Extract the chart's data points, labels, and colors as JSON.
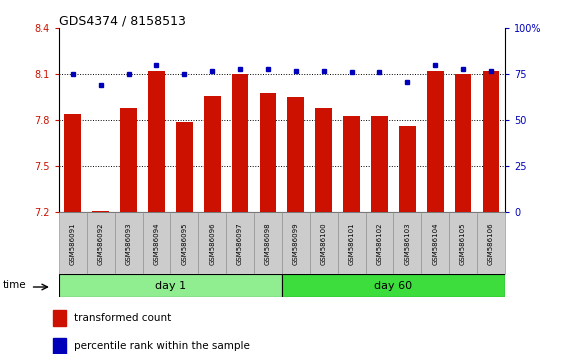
{
  "title": "GDS4374 / 8158513",
  "samples": [
    "GSM586091",
    "GSM586092",
    "GSM586093",
    "GSM586094",
    "GSM586095",
    "GSM586096",
    "GSM586097",
    "GSM586098",
    "GSM586099",
    "GSM586100",
    "GSM586101",
    "GSM586102",
    "GSM586103",
    "GSM586104",
    "GSM586105",
    "GSM586106"
  ],
  "red_values": [
    7.84,
    7.21,
    7.88,
    8.12,
    7.79,
    7.96,
    8.1,
    7.98,
    7.95,
    7.88,
    7.83,
    7.83,
    7.76,
    8.12,
    8.1,
    8.12
  ],
  "blue_values": [
    75,
    69,
    75,
    80,
    75,
    77,
    78,
    78,
    77,
    77,
    76,
    76,
    71,
    80,
    78,
    77
  ],
  "ylim_left": [
    7.2,
    8.4
  ],
  "ylim_right": [
    0,
    100
  ],
  "yticks_left": [
    7.2,
    7.5,
    7.8,
    8.1,
    8.4
  ],
  "yticks_right": [
    0,
    25,
    50,
    75,
    100
  ],
  "day1_count": 8,
  "day60_count": 8,
  "day1_color": "#90EE90",
  "day60_color": "#3CDD3C",
  "bar_color": "#CC1100",
  "dot_color": "#0000BB",
  "background_color": "#FFFFFF",
  "grid_color": "#000000",
  "left_tick_color": "#CC1100",
  "right_tick_color": "#0000BB",
  "label_fontsize": 7,
  "title_fontsize": 9
}
